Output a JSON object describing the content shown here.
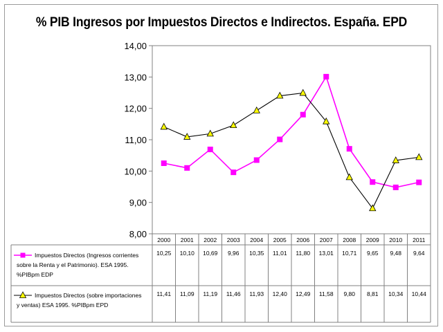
{
  "chart_data": {
    "type": "line",
    "title": "% PIB Ingresos por Impuestos Directos e Indirectos. España. EPD",
    "x": [
      "2000",
      "2001",
      "2002",
      "2003",
      "2004",
      "2005",
      "2006",
      "2007",
      "2008",
      "2009",
      "2010",
      "2011"
    ],
    "ylim": [
      8,
      14
    ],
    "yticks": [
      "8,00",
      "9,00",
      "10,00",
      "11,00",
      "12,00",
      "13,00",
      "14,00"
    ],
    "grid": false,
    "legend": "data-table-below",
    "series": [
      {
        "name_lines": [
          "Impuestos Directos (Ingresos corrientes",
          "sobre la Renta y el Patrimonio). ESA 1995.",
          "%PIBpm EDP"
        ],
        "values": [
          10.25,
          10.1,
          10.69,
          9.96,
          10.35,
          11.01,
          11.8,
          13.01,
          10.71,
          9.65,
          9.48,
          9.64
        ],
        "labels": [
          "10,25",
          "10,10",
          "10,69",
          "9,96",
          "10,35",
          "11,01",
          "11,80",
          "13,01",
          "10,71",
          "9,65",
          "9,48",
          "9,64"
        ],
        "line_color": "#ff00ff",
        "marker": "square",
        "marker_color": "#ff00ff"
      },
      {
        "name_lines": [
          "Impuestos Directos (sobre importaciones",
          "y ventas) ESA 1995. %PIBpm EPD"
        ],
        "values": [
          11.41,
          11.09,
          11.19,
          11.46,
          11.93,
          12.4,
          12.49,
          11.58,
          9.8,
          8.81,
          10.34,
          10.44
        ],
        "labels": [
          "11,41",
          "11,09",
          "11,19",
          "11,46",
          "11,93",
          "12,40",
          "12,49",
          "11,58",
          "9,80",
          "8,81",
          "10,34",
          "10,44"
        ],
        "line_color": "#000000",
        "marker": "triangle",
        "marker_color": "#ffff00"
      }
    ]
  }
}
